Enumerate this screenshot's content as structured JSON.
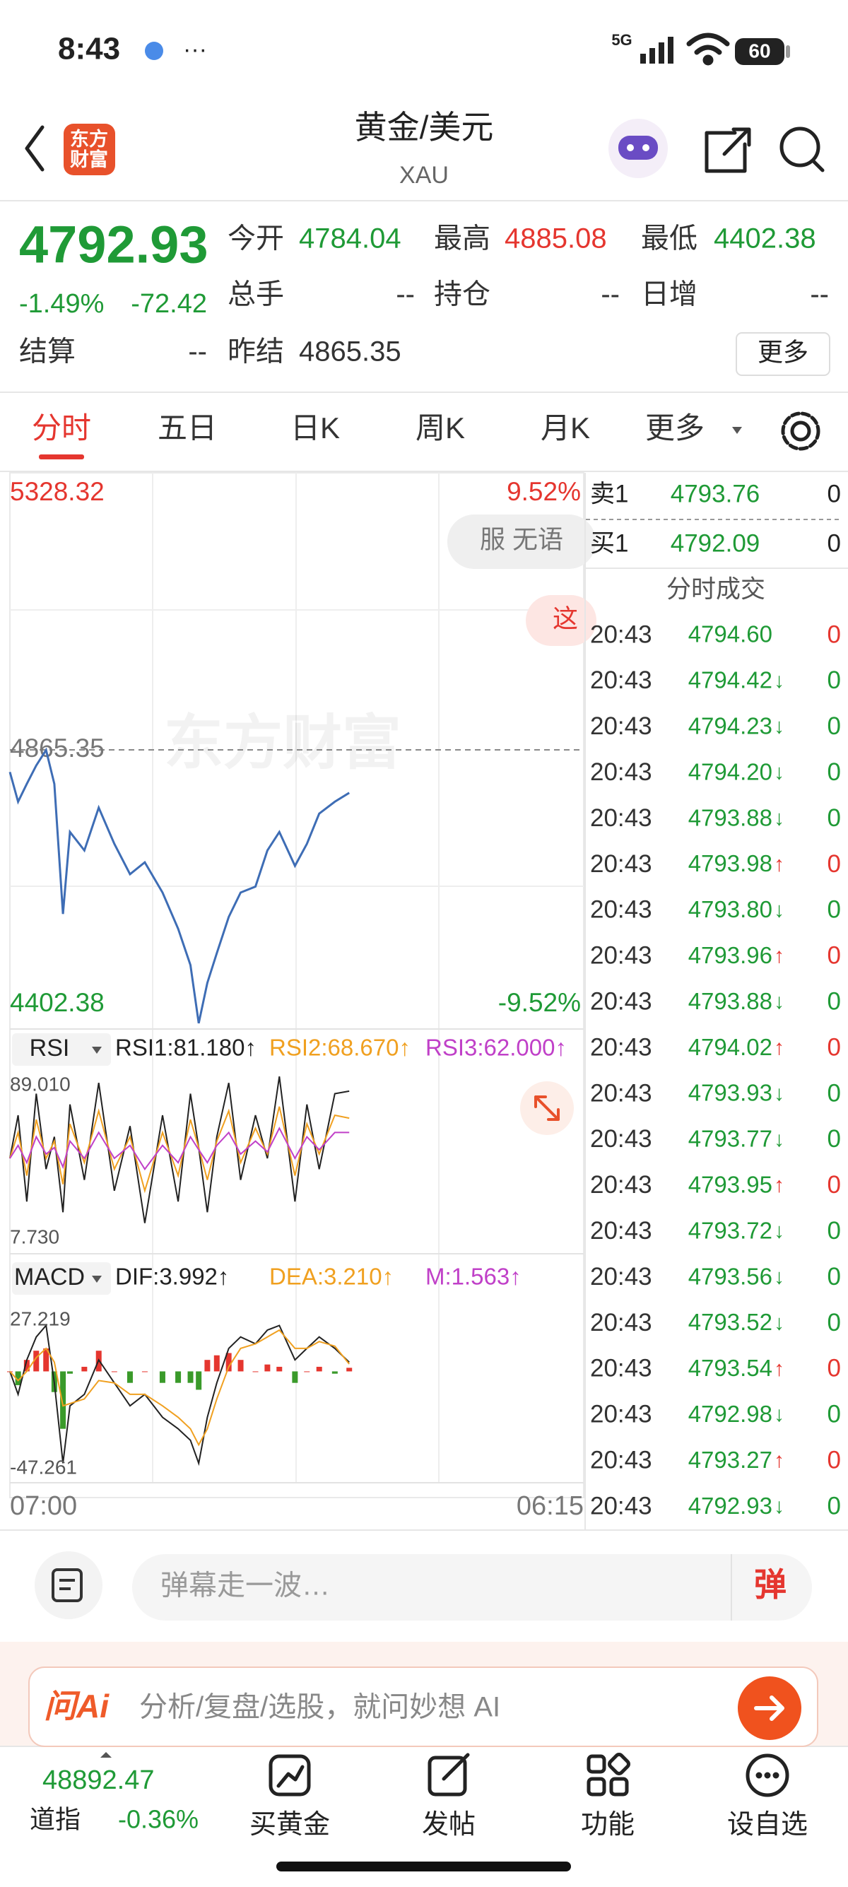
{
  "status_bar": {
    "time": "8:43",
    "network": "5G",
    "battery": "60"
  },
  "header": {
    "title": "黄金/美元",
    "code": "XAU",
    "logo": [
      "东方",
      "财富"
    ]
  },
  "quote": {
    "price": "4792.93",
    "change_pct": "-1.49%",
    "change": "-72.42",
    "fields": [
      {
        "label": "今开",
        "value": "4784.04",
        "color": "#1f9a36"
      },
      {
        "label": "最高",
        "value": "4885.08",
        "color": "#e5362f"
      },
      {
        "label": "最低",
        "value": "4402.38",
        "color": "#1f9a36"
      },
      {
        "label": "总手",
        "value": "--",
        "color": "#333333"
      },
      {
        "label": "持仓",
        "value": "--",
        "color": "#333333"
      },
      {
        "label": "日增",
        "value": "--",
        "color": "#333333"
      },
      {
        "label": "结算",
        "value": "--",
        "color": "#333333"
      },
      {
        "label": "昨结",
        "value": "4865.35",
        "color": "#333333"
      }
    ],
    "more": "更多"
  },
  "tabs": [
    "分时",
    "五日",
    "日K",
    "周K",
    "月K",
    "更多"
  ],
  "active_tab": 0,
  "chart": {
    "x": [
      0,
      20,
      41,
      64,
      88,
      108,
      129,
      146,
      181,
      216,
      254,
      292,
      328,
      371,
      409,
      439,
      459,
      480,
      503,
      532,
      561,
      597,
      626,
      655,
      693,
      722,
      752,
      790,
      825
    ],
    "price": [
      4828,
      4778,
      4808,
      4839,
      4865,
      4808,
      4589,
      4727,
      4696,
      4768,
      4707,
      4656,
      4676,
      4625,
      4564,
      4503,
      4405,
      4473,
      4523,
      4584,
      4625,
      4635,
      4696,
      4727,
      4670,
      4707,
      4758,
      4778,
      4792.93
    ],
    "color": "#3e6db5",
    "xlim": [
      0,
      1395
    ],
    "ylim": [
      4402.38,
      5328.32
    ],
    "ref": 4865.35,
    "pct_labels": [
      "9.52%",
      "-9.52%"
    ],
    "x_labels": [
      "07:00",
      "06:15"
    ],
    "watermark": "东方财富",
    "danmaku": [
      "服 无语",
      "这"
    ]
  },
  "rsi": {
    "selector": "RSI",
    "legend": [
      {
        "text": "RSI1:81.180↑",
        "color": "#222222"
      },
      {
        "text": "RSI2:68.670↑",
        "color": "#f0a020"
      },
      {
        "text": "RSI3:62.000↑",
        "color": "#c040c8"
      }
    ],
    "ylim": [
      7.73,
      89.01
    ],
    "yticks": [
      {
        "value": 89.01,
        "label": "89.010"
      },
      {
        "value": 7.73,
        "label": "7.730"
      }
    ],
    "series": [
      {
        "color": "#222222",
        "values": [
          50,
          70,
          30,
          80,
          45,
          60,
          25,
          75,
          40,
          85,
          35,
          65,
          20,
          70,
          30,
          80,
          55,
          25,
          60,
          85,
          40,
          70,
          50,
          88,
          30,
          75,
          45,
          80,
          81.18
        ]
      },
      {
        "color": "#f0a020",
        "values": [
          50,
          62,
          42,
          68,
          50,
          58,
          38,
          66,
          48,
          72,
          45,
          60,
          35,
          62,
          42,
          68,
          55,
          40,
          58,
          72,
          48,
          64,
          52,
          74,
          42,
          66,
          52,
          70,
          68.67
        ]
      },
      {
        "color": "#c040c8",
        "values": [
          50,
          56,
          48,
          60,
          52,
          55,
          46,
          58,
          50,
          62,
          50,
          56,
          45,
          56,
          48,
          60,
          54,
          48,
          56,
          62,
          52,
          58,
          53,
          64,
          50,
          60,
          54,
          62,
          62
        ]
      }
    ]
  },
  "macd": {
    "selector": "MACD",
    "legend": [
      {
        "text": "DIF:3.992↑",
        "color": "#222222"
      },
      {
        "text": "DEA:3.210↑",
        "color": "#f0a020"
      },
      {
        "text": "M:1.563↑",
        "color": "#c040c8"
      }
    ],
    "ylim": [
      -47.261,
      27.219
    ],
    "yticks": [
      27.219,
      -47.261
    ],
    "series": [
      {
        "color": "#222222",
        "values": [
          0,
          -10,
          5,
          15,
          20,
          -5,
          -40,
          -15,
          -10,
          5,
          -5,
          -15,
          -10,
          -20,
          -25,
          -30,
          -40,
          -20,
          -5,
          10,
          15,
          12,
          18,
          20,
          5,
          10,
          15,
          10,
          3.992
        ]
      },
      {
        "color": "#f0a020",
        "values": [
          0,
          -4,
          0,
          6,
          10,
          4,
          -15,
          -14,
          -12,
          -4,
          -5,
          -10,
          -10,
          -15,
          -20,
          -25,
          -32,
          -25,
          -12,
          2,
          10,
          12,
          15,
          18,
          10,
          10,
          13,
          11,
          3.21
        ]
      }
    ],
    "hist": {
      "up_color": "#e5362f",
      "down_color": "#3a9a2a",
      "values": [
        0,
        -6,
        5,
        9,
        10,
        -9,
        -25,
        -1,
        2,
        9,
        0,
        -5,
        0,
        -5,
        -5,
        -5,
        -8,
        5,
        7,
        8,
        5,
        0,
        3,
        2,
        -5,
        0,
        2,
        -1,
        1.563
      ]
    }
  },
  "order_book": [
    {
      "side": "卖1",
      "price": "4793.76",
      "volume": "0"
    },
    {
      "side": "买1",
      "price": "4792.09",
      "volume": "0"
    }
  ],
  "trades_title": "分时成交",
  "trades": [
    {
      "time": "20:43",
      "price": "4794.60",
      "volume": "0"
    },
    {
      "time": "20:43",
      "price": "4794.42",
      "arrow": "↓",
      "volume": "0"
    },
    {
      "time": "20:43",
      "price": "4794.23",
      "arrow": "↓",
      "volume": "0"
    },
    {
      "time": "20:43",
      "price": "4794.20",
      "arrow": "↓",
      "volume": "0"
    },
    {
      "time": "20:43",
      "price": "4793.88",
      "arrow": "↓",
      "volume": "0"
    },
    {
      "time": "20:43",
      "price": "4793.98",
      "arrow": "↑",
      "volume": "0"
    },
    {
      "time": "20:43",
      "price": "4793.80",
      "arrow": "↓",
      "volume": "0"
    },
    {
      "time": "20:43",
      "price": "4793.96",
      "arrow": "↑",
      "volume": "0"
    },
    {
      "time": "20:43",
      "price": "4793.88",
      "arrow": "↓",
      "volume": "0"
    },
    {
      "time": "20:43",
      "price": "4794.02",
      "arrow": "↑",
      "volume": "0"
    },
    {
      "time": "20:43",
      "price": "4793.93",
      "arrow": "↓",
      "volume": "0"
    },
    {
      "time": "20:43",
      "price": "4793.77",
      "arrow": "↓",
      "volume": "0"
    },
    {
      "time": "20:43",
      "price": "4793.95",
      "arrow": "↑",
      "volume": "0"
    },
    {
      "time": "20:43",
      "price": "4793.72",
      "arrow": "↓",
      "volume": "0"
    },
    {
      "time": "20:43",
      "price": "4793.56",
      "arrow": "↓",
      "volume": "0"
    },
    {
      "time": "20:43",
      "price": "4793.52",
      "arrow": "↓",
      "volume": "0"
    },
    {
      "time": "20:43",
      "price": "4793.54",
      "arrow": "↑",
      "volume": "0"
    },
    {
      "time": "20:43",
      "price": "4792.98",
      "arrow": "↓",
      "volume": "0"
    },
    {
      "time": "20:43",
      "price": "4793.27",
      "arrow": "↑",
      "volume": "0"
    },
    {
      "time": "20:43",
      "price": "4792.93",
      "arrow": "↓",
      "volume": "0"
    }
  ],
  "comment": {
    "placeholder": "弹幕走一波…",
    "button": "弹"
  },
  "ai": {
    "logo": "问Ai",
    "prompt": "分析/复盘/选股，就问妙想 AI"
  },
  "index": {
    "value": "48892.47",
    "name": "道指",
    "change": "-0.36%"
  },
  "nav": [
    "买黄金",
    "发帖",
    "功能",
    "设自选"
  ]
}
